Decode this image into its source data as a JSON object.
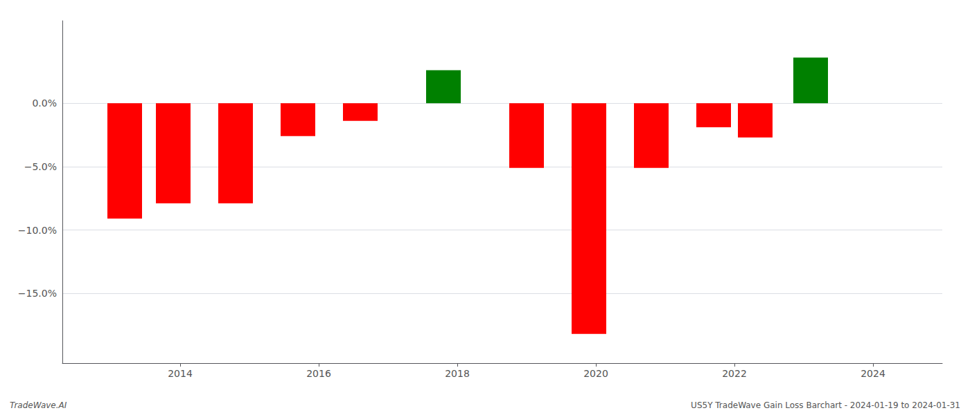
{
  "chart_data": {
    "type": "bar",
    "x": [
      2013.2,
      2013.9,
      2014.8,
      2015.7,
      2016.6,
      2017.8,
      2019.0,
      2019.9,
      2020.8,
      2021.7,
      2022.3,
      2023.1
    ],
    "values": [
      -0.091,
      -0.079,
      -0.079,
      -0.026,
      -0.014,
      0.026,
      -0.051,
      -0.182,
      -0.051,
      -0.019,
      -0.027,
      0.036
    ],
    "colors": [
      "#ff0000",
      "#ff0000",
      "#ff0000",
      "#ff0000",
      "#ff0000",
      "#008000",
      "#ff0000",
      "#ff0000",
      "#ff0000",
      "#ff0000",
      "#ff0000",
      "#008000"
    ],
    "xlim": [
      2012.3,
      2025.0
    ],
    "xticks": [
      2014,
      2016,
      2018,
      2020,
      2022,
      2024
    ],
    "ylim": [
      -0.205,
      0.065
    ],
    "yticks": [
      {
        "value": 0.0,
        "label": "0.0%"
      },
      {
        "value": -0.05,
        "label": "−5.0%"
      },
      {
        "value": -0.1,
        "label": "−10.0%"
      },
      {
        "value": -0.15,
        "label": "−15.0%"
      }
    ],
    "grid": true,
    "annotations": [
      "TradeWave.AI",
      "US5Y TradeWave Gain Loss Barchart - 2024-01-19 to 2024-01-31"
    ]
  }
}
